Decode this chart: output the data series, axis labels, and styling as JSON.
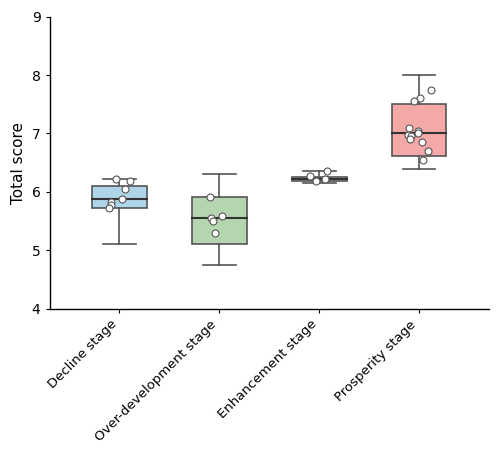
{
  "categories": [
    "Decline stage",
    "Over-development stage",
    "Enhancement stage",
    "Prosperity stage"
  ],
  "box_data": [
    [
      5.1,
      5.72,
      5.88,
      6.1,
      6.22
    ],
    [
      4.75,
      5.1,
      5.55,
      5.92,
      6.3
    ],
    [
      6.15,
      6.18,
      6.22,
      6.25,
      6.35
    ],
    [
      6.4,
      6.62,
      7.0,
      7.5,
      8.0
    ]
  ],
  "jitter_data": [
    [
      6.22,
      6.18,
      6.05,
      5.88,
      5.82,
      5.78,
      5.72
    ],
    [
      5.92,
      5.58,
      5.55,
      5.5,
      5.3
    ],
    [
      6.35,
      6.28,
      6.22,
      6.18
    ],
    [
      7.75,
      7.6,
      7.55,
      7.1,
      7.05,
      7.0,
      6.98,
      6.95,
      6.9,
      6.85,
      6.7,
      6.55
    ]
  ],
  "box_colors": [
    "#aed6e8",
    "#b5d5b0",
    "#c8e6c8",
    "#f4a9a8"
  ],
  "box_edge_colors": [
    "#555555",
    "#555555",
    "#555555",
    "#555555"
  ],
  "median_colors": [
    "#333333",
    "#333333",
    "#333333",
    "#333333"
  ],
  "whisker_colors": [
    "#555555",
    "#555555",
    "#555555",
    "#555555"
  ],
  "ylabel": "Total score",
  "ylim": [
    4,
    9
  ],
  "yticks": [
    4,
    5,
    6,
    7,
    8,
    9
  ],
  "background_color": "#ffffff",
  "box_width": 0.55,
  "jitter_color": "white",
  "jitter_edgecolor": "#555555",
  "jitter_size": 6,
  "figure_width": 5.0,
  "figure_height": 4.55
}
